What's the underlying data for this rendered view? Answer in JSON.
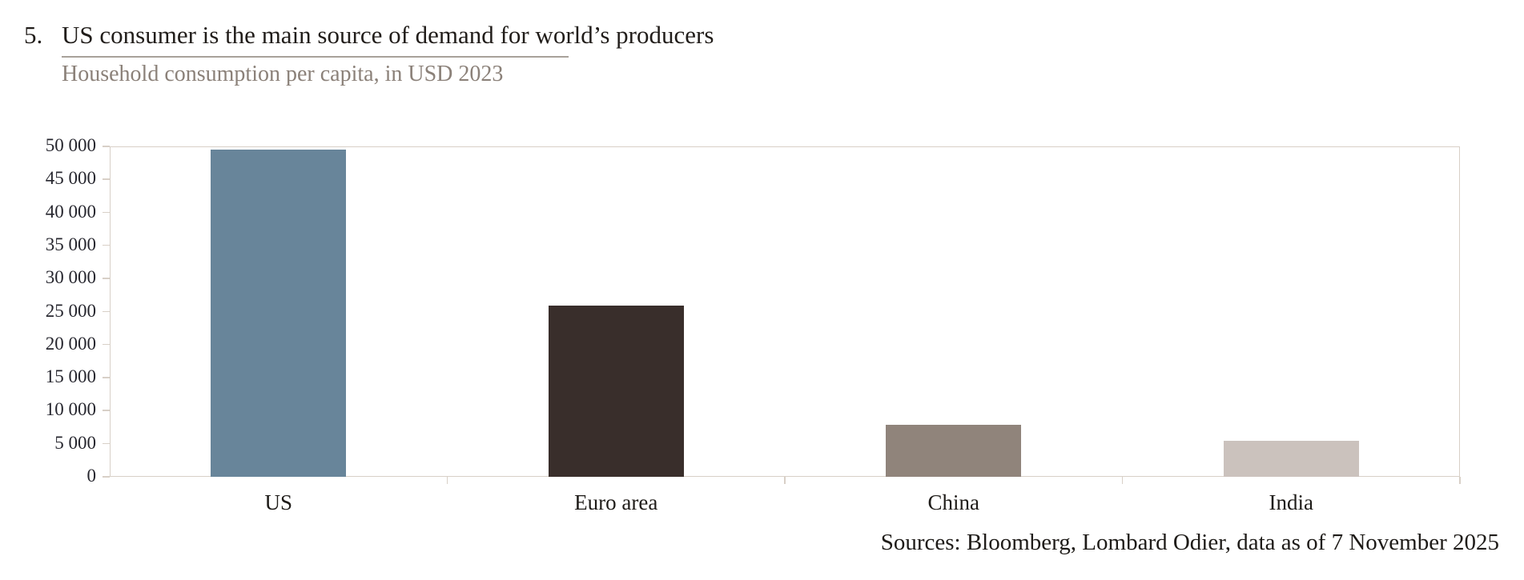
{
  "header": {
    "figure_number": "5.",
    "title": "US consumer is the main source of demand for world’s producers",
    "subtitle": "Household consumption per capita, in USD 2023"
  },
  "chart_data": {
    "type": "bar",
    "title": "US consumer is the main source of demand for world’s producers",
    "subtitle": "Household consumption per capita, in USD 2023",
    "categories": [
      "US",
      "Euro area",
      "China",
      "India"
    ],
    "values": [
      49500,
      25900,
      7900,
      5400
    ],
    "bar_colors": [
      "#68859A",
      "#392E2B",
      "#90847B",
      "#CBC2BD"
    ],
    "xlabel": "",
    "ylabel": "",
    "ylim": [
      0,
      50000
    ],
    "ytick_step": 5000,
    "ytick_labels": [
      "0",
      "5 000",
      "10 000",
      "15 000",
      "20 000",
      "25 000",
      "30 000",
      "35 000",
      "40 000",
      "45 000",
      "50 000"
    ],
    "grid": false,
    "legend": false,
    "axis_color": "#d8d0c7"
  },
  "footer": {
    "source": "Sources: Bloomberg, Lombard Odier, data as of 7 November 2025"
  }
}
